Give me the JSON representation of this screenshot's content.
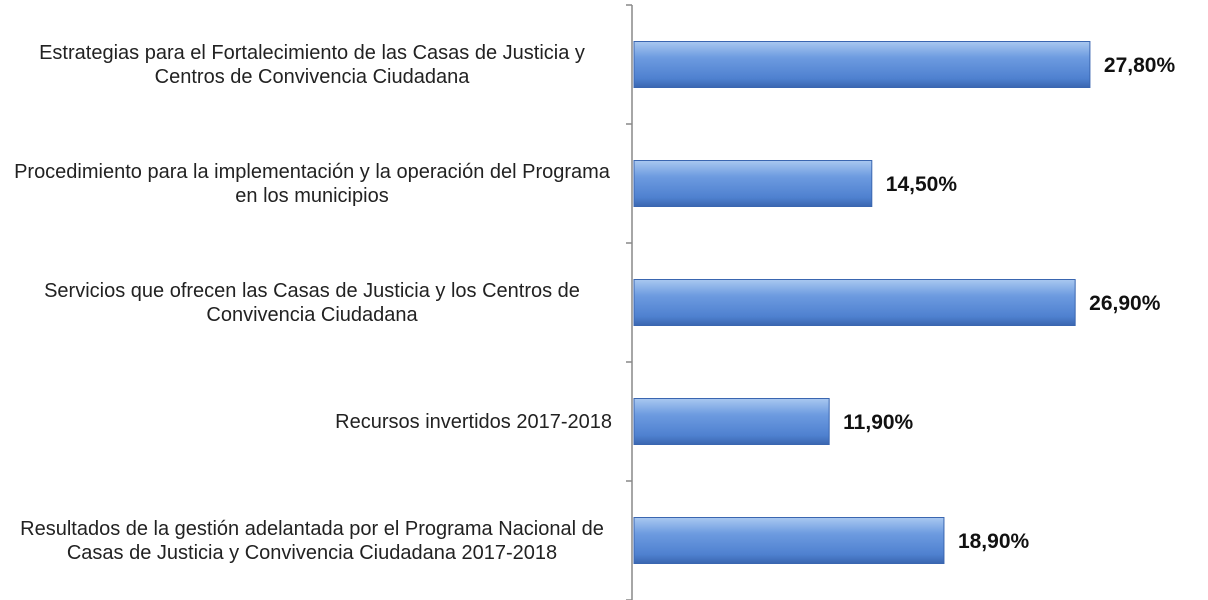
{
  "chart_data": {
    "type": "bar",
    "orientation": "horizontal",
    "categories": [
      "Estrategias para el Fortalecimiento de las Casas de Justicia y Centros de Convivencia Ciudadana",
      "Procedimiento para la implementación y la operación del Programa en los municipios",
      "Servicios que ofrecen las Casas de Justicia y los Centros de Convivencia Ciudadana",
      "Recursos invertidos 2017-2018",
      "Resultados de la gestión adelantada por el Programa Nacional de Casas de Justicia y Convivencia Ciudadana 2017-2018"
    ],
    "values": [
      27.8,
      14.5,
      26.9,
      11.9,
      18.9
    ],
    "value_labels": [
      "27,80%",
      "14,50%",
      "26,90%",
      "11,90%",
      "18,90%"
    ],
    "color": "#4f81d0"
  }
}
